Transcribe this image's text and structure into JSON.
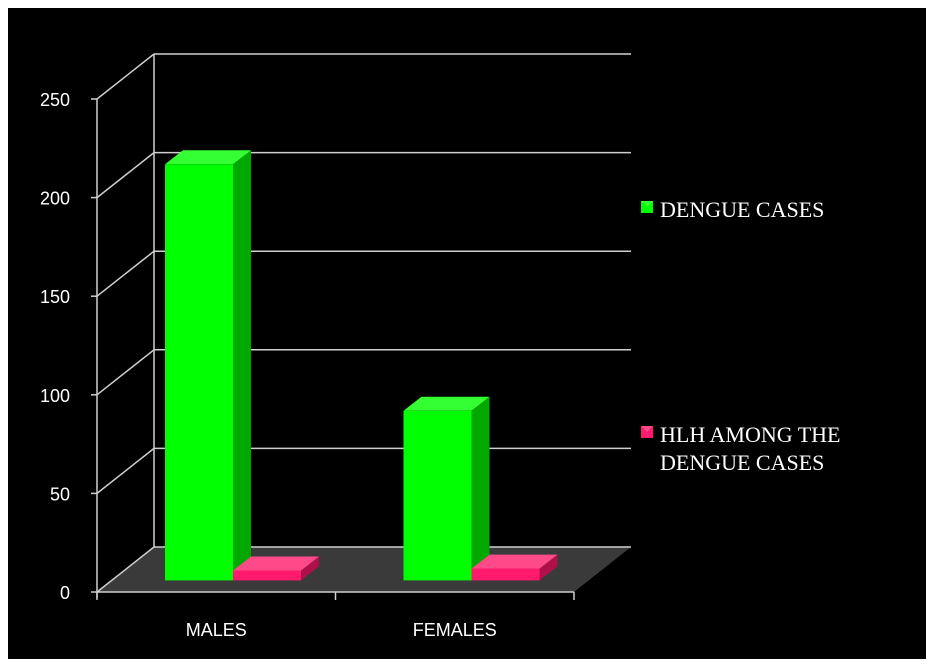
{
  "chart_data": {
    "type": "bar",
    "title": "",
    "xlabel": "",
    "ylabel": "",
    "ylim": [
      0,
      250
    ],
    "yticks": [
      0,
      50,
      100,
      150,
      200,
      250
    ],
    "categories": [
      "MALES",
      "FEMALES"
    ],
    "series": [
      {
        "name": "DENGUE CASES",
        "values": [
          211,
          86
        ]
      },
      {
        "name": "HLH AMONG THE DENGUE CASES",
        "values": [
          5,
          6
        ]
      }
    ],
    "grid": true,
    "legend_position": "right",
    "three_d": true,
    "colors": {
      "background": "#000000",
      "gridline": "#cfcfcf",
      "floor": "#3a3a3a",
      "series": [
        "#00ff00",
        "#ff1a6e"
      ],
      "series_side": [
        "#00a800",
        "#b0104a"
      ],
      "series_top": [
        "#33ff33",
        "#ff4a8a"
      ]
    }
  }
}
